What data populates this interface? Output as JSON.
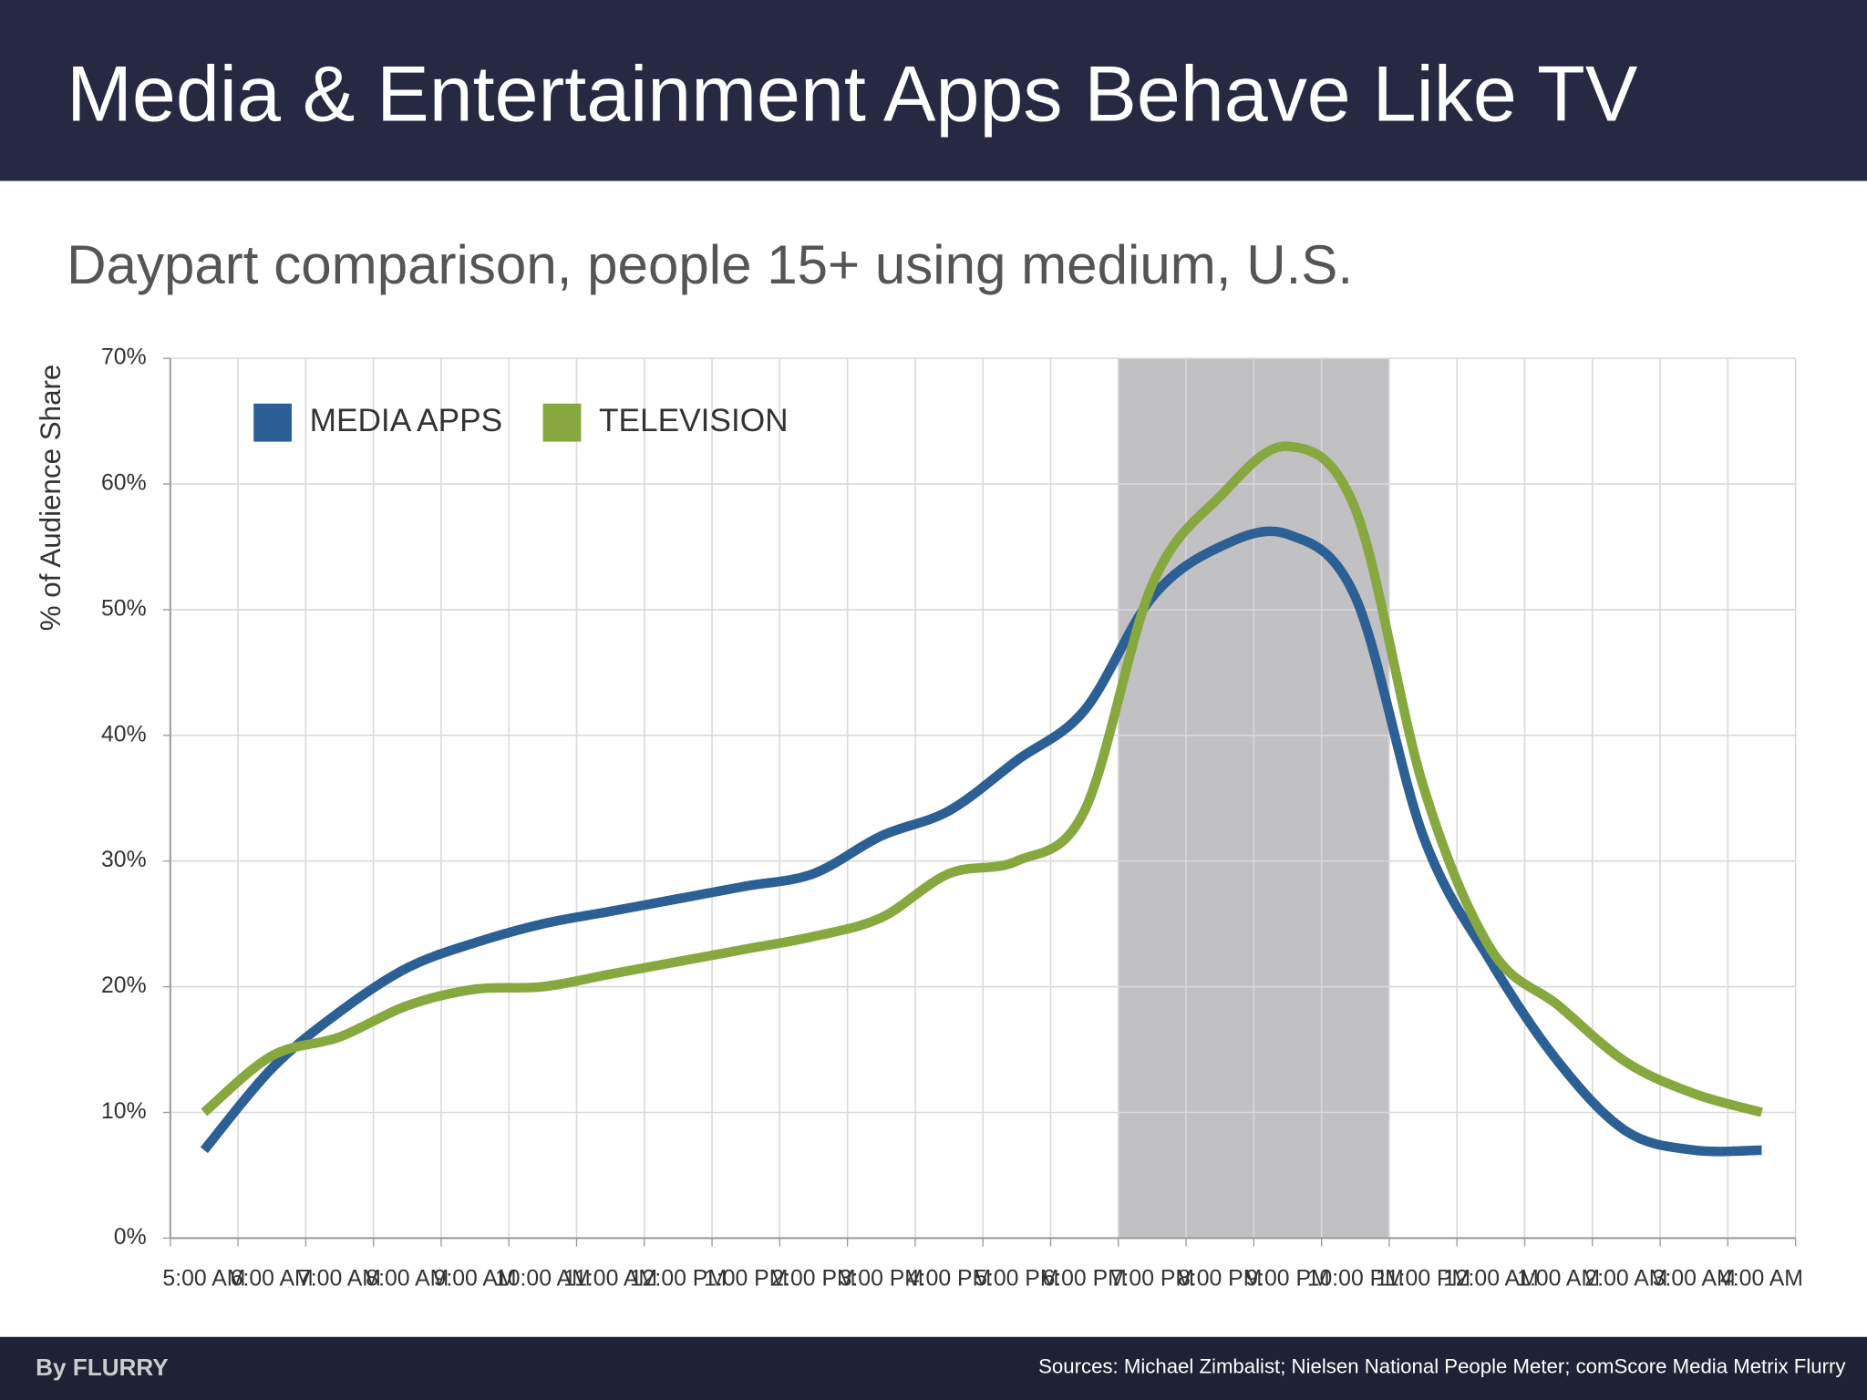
{
  "header": {
    "title": "Media & Entertainment Apps Behave Like TV"
  },
  "footer": {
    "brand": "By FLURRY",
    "sources": "Sources: Michael Zimbalist; Nielsen National People Meter; comScore Media Metrix  Flurry"
  },
  "chart_data": {
    "type": "line",
    "title": "Daypart comparison, people 15+ using medium, U.S.",
    "y_label": "% of Audience Share",
    "categories": [
      "5:00 AM",
      "6:00 AM",
      "7:00 AM",
      "8:00 AM",
      "9:00 AM",
      "10:00 AM",
      "11:00 AM",
      "12:00 PM",
      "1:00 PM",
      "2:00 PM",
      "3:00 PM",
      "4:00 PM",
      "5:00 PM",
      "6:00 PM",
      "7:00 PM",
      "8:00 PM",
      "9:00 PM",
      "10:00 PM",
      "11:00 PM",
      "12:00 AM",
      "1:00 AM",
      "2:00 AM",
      "3:00 AM",
      "4:00 AM"
    ],
    "series": [
      {
        "name": "MEDIA APPS",
        "color": "#2c5f94",
        "values": [
          7,
          13.5,
          18,
          21.5,
          23.5,
          25,
          26,
          27,
          28,
          29,
          32,
          34,
          38,
          42,
          51,
          55,
          56,
          51,
          32,
          22,
          14,
          8.5,
          7,
          7
        ]
      },
      {
        "name": "TELEVISION",
        "color": "#86a83f",
        "values": [
          10,
          14.5,
          16,
          18.5,
          19.8,
          20,
          21,
          22,
          23,
          24,
          25.5,
          29,
          30,
          34,
          52,
          59,
          63,
          58,
          36,
          23,
          18.5,
          14,
          11.5,
          10
        ]
      }
    ],
    "ylim": [
      0,
      70
    ],
    "yticks": [
      {
        "value": 0,
        "label": "0%"
      },
      {
        "value": 10,
        "label": "10%"
      },
      {
        "value": 20,
        "label": "20%"
      },
      {
        "value": 30,
        "label": "30%"
      },
      {
        "value": 40,
        "label": "40%"
      },
      {
        "value": 50,
        "label": "50%"
      },
      {
        "value": 60,
        "label": "60%"
      },
      {
        "value": 70,
        "label": "70%"
      }
    ],
    "grid": true,
    "legend": "top-left",
    "highlight": [
      "7:00 PM",
      "10:00 PM"
    ]
  }
}
